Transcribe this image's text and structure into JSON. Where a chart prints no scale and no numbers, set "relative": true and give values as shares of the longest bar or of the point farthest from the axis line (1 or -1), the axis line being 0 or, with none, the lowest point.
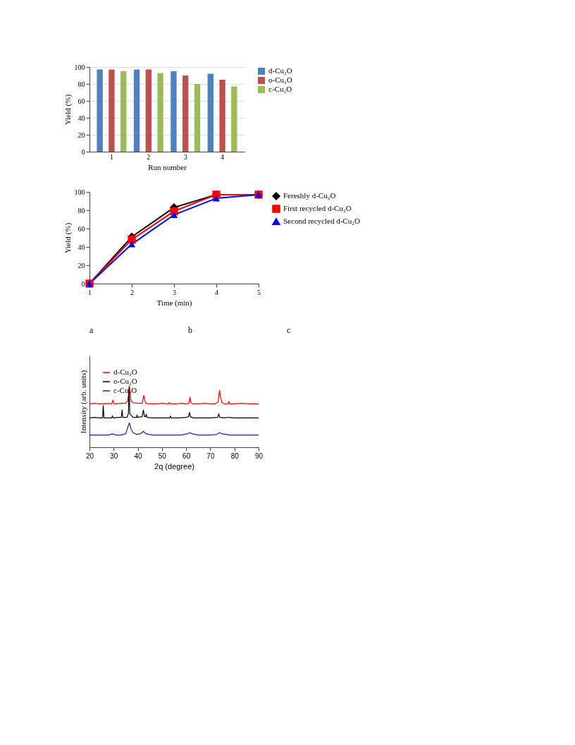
{
  "chart_data": [
    {
      "type": "bar",
      "xlabel": "Run number",
      "ylabel": "Yield (%)",
      "categories": [
        "1",
        "2",
        "3",
        "4"
      ],
      "ylim": [
        0,
        100
      ],
      "yticks": [
        0,
        20,
        40,
        60,
        80,
        100
      ],
      "grid": "y",
      "legend": "right",
      "series": [
        {
          "name": "d-Cu₂O",
          "color": "#4f81bd",
          "values": [
            97,
            97,
            95,
            92
          ]
        },
        {
          "name": "o-Cu₂O",
          "color": "#c0504d",
          "values": [
            97,
            97,
            90,
            85
          ]
        },
        {
          "name": "c-Cu₂O",
          "color": "#9bbb59",
          "values": [
            95,
            93,
            80,
            77
          ]
        }
      ]
    },
    {
      "type": "line",
      "xlabel": "Time (min)",
      "ylabel": "Yield (%)",
      "x": [
        1,
        2,
        3,
        4,
        5
      ],
      "xlim": [
        1,
        5
      ],
      "xticks": [
        1,
        2,
        3,
        4,
        5
      ],
      "ylim": [
        0,
        100
      ],
      "yticks": [
        0,
        20,
        40,
        60,
        80,
        100
      ],
      "legend": "right",
      "line_style": "solid",
      "series": [
        {
          "name": "Fereshly d-Cu₂O",
          "color": "#000000",
          "marker": "diamond",
          "values": [
            0,
            51,
            83,
            97,
            97
          ]
        },
        {
          "name": "First recycled d-Cu₂O",
          "color": "#ff0000",
          "marker": "square",
          "values": [
            0,
            48,
            79,
            97,
            97
          ]
        },
        {
          "name": "Second recycled d-Cu₂O",
          "color": "#0000ff",
          "marker": "triangle",
          "values": [
            0,
            43,
            75,
            93,
            97
          ]
        }
      ]
    },
    {
      "type": "other",
      "annotations": [
        "a",
        "b",
        "c"
      ]
    },
    {
      "type": "line",
      "relative": true,
      "xlabel": "2q (degree)",
      "ylabel": "Intensity (arb. units)",
      "xlim": [
        20,
        90
      ],
      "xticks": [
        20,
        30,
        40,
        50,
        60,
        70,
        80,
        90
      ],
      "legend": "top left",
      "marker": "none",
      "tick_labels": "x",
      "series": [
        {
          "name": "d-Cu₂O",
          "color": "#ff0000",
          "x": [
            20,
            22,
            24,
            26,
            28,
            29.2,
            29.7,
            30.2,
            31,
            33,
            35,
            35.8,
            36.2,
            36.5,
            36.8,
            37.2,
            38,
            40,
            41.8,
            42.2,
            42.5,
            42.8,
            43.3,
            45,
            48,
            50,
            52.5,
            53,
            53.5,
            56,
            58,
            60,
            61.2,
            61.6,
            62,
            63,
            65,
            68,
            70,
            72,
            73.2,
            73.6,
            73.9,
            74.2,
            74.8,
            76,
            77.3,
            77.7,
            78.1,
            80,
            83,
            86,
            90
          ],
          "values": [
            0.71,
            0.72,
            0.71,
            0.71,
            0.72,
            0.71,
            0.77,
            0.71,
            0.71,
            0.72,
            0.72,
            0.76,
            0.88,
            1.0,
            0.88,
            0.76,
            0.73,
            0.72,
            0.72,
            0.8,
            0.85,
            0.78,
            0.72,
            0.71,
            0.71,
            0.72,
            0.71,
            0.73,
            0.71,
            0.71,
            0.72,
            0.71,
            0.72,
            0.82,
            0.73,
            0.71,
            0.71,
            0.72,
            0.71,
            0.71,
            0.74,
            0.88,
            0.93,
            0.83,
            0.73,
            0.71,
            0.71,
            0.75,
            0.71,
            0.71,
            0.72,
            0.71,
            0.71
          ]
        },
        {
          "name": "o-Cu₂O",
          "color": "#000000",
          "x": [
            20,
            22,
            24,
            25.4,
            25.7,
            26,
            28,
            29.2,
            29.5,
            29.8,
            32,
            33.2,
            33.5,
            33.8,
            35.5,
            36.1,
            36.4,
            36.7,
            38,
            39.5,
            39.7,
            39.9,
            41.8,
            42.3,
            42.8,
            43.2,
            43.5,
            43.8,
            46,
            50,
            53.2,
            53.5,
            53.8,
            57,
            60,
            61,
            61.4,
            61.8,
            63,
            66,
            70,
            73.1,
            73.5,
            73.9,
            76,
            77.5,
            80,
            85,
            90
          ],
          "values": [
            0.48,
            0.49,
            0.48,
            0.48,
            0.68,
            0.48,
            0.48,
            0.48,
            0.515,
            0.48,
            0.49,
            0.49,
            0.61,
            0.49,
            0.49,
            0.55,
            0.98,
            0.55,
            0.49,
            0.49,
            0.53,
            0.49,
            0.5,
            0.61,
            0.5,
            0.5,
            0.54,
            0.49,
            0.48,
            0.48,
            0.48,
            0.51,
            0.48,
            0.48,
            0.49,
            0.5,
            0.57,
            0.5,
            0.48,
            0.48,
            0.48,
            0.49,
            0.55,
            0.49,
            0.48,
            0.49,
            0.48,
            0.48,
            0.48
          ]
        },
        {
          "name": "c-Cu₂O",
          "color": "#1f1f9f",
          "x": [
            20,
            23,
            26,
            28,
            29.5,
            31,
            33,
            35,
            35.8,
            36.5,
            37.2,
            38,
            38.5,
            39.5,
            41,
            42.3,
            43.5,
            46,
            50,
            55,
            58,
            60.5,
            61.5,
            62.5,
            65,
            70,
            72.5,
            73.8,
            75,
            78,
            82,
            86,
            90
          ],
          "values": [
            0.2,
            0.2,
            0.2,
            0.2,
            0.22,
            0.2,
            0.2,
            0.22,
            0.32,
            0.4,
            0.3,
            0.24,
            0.23,
            0.21,
            0.22,
            0.26,
            0.22,
            0.2,
            0.2,
            0.2,
            0.2,
            0.22,
            0.24,
            0.22,
            0.2,
            0.2,
            0.21,
            0.24,
            0.22,
            0.2,
            0.2,
            0.2,
            0.2
          ]
        }
      ]
    }
  ]
}
